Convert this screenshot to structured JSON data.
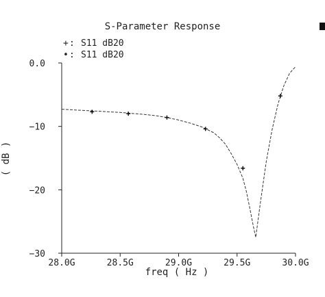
{
  "chart_data": {
    "type": "line",
    "title": "S-Parameter Response",
    "xlabel": "freq ( Hz )",
    "ylabel": "( dB )",
    "xlim": [
      28.0,
      30.0
    ],
    "ylim": [
      -30,
      0
    ],
    "xticks": [
      {
        "value": 28.0,
        "label": "28.0G"
      },
      {
        "value": 28.5,
        "label": "28.5G"
      },
      {
        "value": 29.0,
        "label": "29.0G"
      },
      {
        "value": 29.5,
        "label": "29.5G"
      },
      {
        "value": 30.0,
        "label": "30.0G"
      }
    ],
    "yticks": [
      {
        "value": 0,
        "label": "0.0"
      },
      {
        "value": -10,
        "label": "−10"
      },
      {
        "value": -20,
        "label": "−20"
      },
      {
        "value": -30,
        "label": "−30"
      }
    ],
    "legend": {
      "position": "top-left",
      "entries": [
        {
          "marker": "+",
          "label": "S11 dB20"
        },
        {
          "marker": "•",
          "label": "S11 dB20"
        }
      ]
    },
    "series": [
      {
        "name": "S11 dB20",
        "color": "#333333",
        "line": "dashed",
        "x": [
          28.0,
          28.1,
          28.2,
          28.3,
          28.4,
          28.5,
          28.6,
          28.7,
          28.8,
          28.9,
          29.0,
          29.1,
          29.2,
          29.3,
          29.35,
          29.4,
          29.45,
          29.5,
          29.55,
          29.58,
          29.61,
          29.64,
          29.66,
          29.7,
          29.75,
          29.8,
          29.85,
          29.9,
          29.95,
          30.0
        ],
        "y": [
          -7.3,
          -7.4,
          -7.5,
          -7.6,
          -7.7,
          -7.8,
          -7.95,
          -8.1,
          -8.3,
          -8.6,
          -9.0,
          -9.5,
          -10.1,
          -11.0,
          -11.8,
          -12.8,
          -14.3,
          -16.0,
          -18.2,
          -20.3,
          -23.0,
          -25.8,
          -27.5,
          -22.0,
          -15.5,
          -10.5,
          -6.5,
          -3.6,
          -1.6,
          -0.6
        ]
      }
    ],
    "markers": {
      "symbol": "+",
      "x": [
        28.26,
        28.57,
        28.9,
        29.23,
        29.55,
        29.87
      ],
      "y": [
        -7.7,
        -8.0,
        -8.6,
        -10.4,
        -16.6,
        -5.2
      ]
    }
  }
}
